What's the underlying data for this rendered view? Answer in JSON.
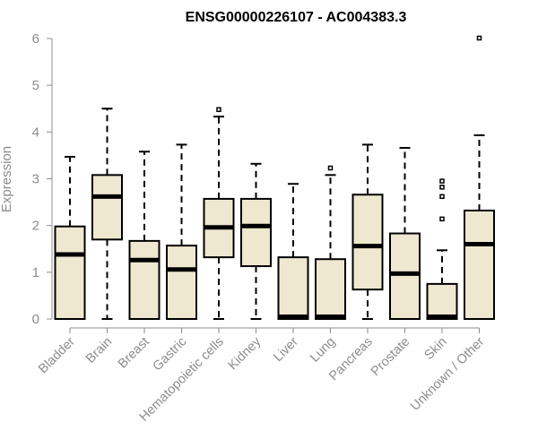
{
  "colors": {
    "box_fill": "#efe8d0",
    "stroke": "#000000",
    "axis": "#8c8c8c",
    "text": "#8c8c8c",
    "title": "#000000"
  },
  "chart_data": {
    "type": "box",
    "title": "ENSG00000226107 - AC004383.3",
    "xlabel": "",
    "ylabel": "Expression",
    "ylim": [
      0,
      6
    ],
    "yticks": [
      "0",
      "1",
      "2",
      "3",
      "4",
      "5",
      "6"
    ],
    "grid": false,
    "categories": [
      "Bladder",
      "Brain",
      "Breast",
      "Gastric",
      "Hematopoietic cells",
      "Kidney",
      "Liver",
      "Lung",
      "Pancreas",
      "Prostate",
      "Skin",
      "Unknown / Other"
    ],
    "boxes": [
      {
        "min": 0,
        "q1": 0,
        "median": 1.38,
        "q3": 1.98,
        "max": 3.47,
        "outliers": []
      },
      {
        "min": 0,
        "q1": 1.7,
        "median": 2.62,
        "q3": 3.08,
        "max": 4.5,
        "outliers": []
      },
      {
        "min": 0,
        "q1": 0,
        "median": 1.26,
        "q3": 1.67,
        "max": 3.58,
        "outliers": []
      },
      {
        "min": 0,
        "q1": 0,
        "median": 1.06,
        "q3": 1.57,
        "max": 3.73,
        "outliers": []
      },
      {
        "min": 0,
        "q1": 1.32,
        "median": 1.96,
        "q3": 2.57,
        "max": 4.33,
        "outliers": [
          4.48
        ]
      },
      {
        "min": 0,
        "q1": 1.13,
        "median": 1.99,
        "q3": 2.57,
        "max": 3.32,
        "outliers": []
      },
      {
        "min": 0,
        "q1": 0,
        "median": 0.02,
        "q3": 1.32,
        "max": 2.89,
        "outliers": []
      },
      {
        "min": 0,
        "q1": 0,
        "median": 0.02,
        "q3": 1.28,
        "max": 3.08,
        "outliers": [
          3.23
        ]
      },
      {
        "min": 0,
        "q1": 0.63,
        "median": 1.56,
        "q3": 2.66,
        "max": 3.73,
        "outliers": []
      },
      {
        "min": 0,
        "q1": 0,
        "median": 0.97,
        "q3": 1.83,
        "max": 3.66,
        "outliers": []
      },
      {
        "min": 0,
        "q1": 0,
        "median": 0.02,
        "q3": 0.75,
        "max": 1.47,
        "outliers": [
          2.14,
          2.62,
          2.82,
          2.95
        ]
      },
      {
        "min": 0,
        "q1": 0,
        "median": 1.6,
        "q3": 2.32,
        "max": 3.93,
        "outliers": [
          6.01
        ]
      }
    ]
  }
}
